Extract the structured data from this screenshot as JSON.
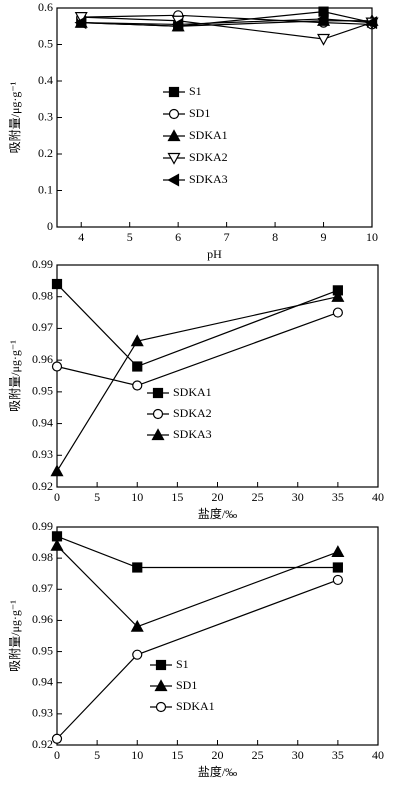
{
  "chart_data": [
    {
      "type": "line",
      "xlabel": "pH",
      "ylabel": "吸附量/μg·g⁻¹",
      "x": [
        4,
        6,
        9,
        10
      ],
      "xlim": [
        3.5,
        10
      ],
      "xticks": [
        4,
        5,
        6,
        7,
        8,
        9,
        10
      ],
      "ylim": [
        0,
        0.6
      ],
      "yticks": [
        0,
        0.1,
        0.2,
        0.3,
        0.4,
        0.5,
        0.6
      ],
      "legend": "center",
      "series": [
        {
          "name": "S1",
          "color": "#000000",
          "marker": "square",
          "values": [
            0.56,
            0.55,
            0.59,
            0.56
          ]
        },
        {
          "name": "SD1",
          "color": "#000000",
          "marker": "circle-open",
          "values": [
            0.575,
            0.58,
            0.56,
            0.555
          ]
        },
        {
          "name": "SDKA1",
          "color": "#000000",
          "marker": "triangle-up",
          "values": [
            0.56,
            0.55,
            0.565,
            0.565
          ]
        },
        {
          "name": "SDKA2",
          "color": "#000000",
          "marker": "triangle-down-open",
          "values": [
            0.575,
            0.565,
            0.515,
            0.56
          ]
        },
        {
          "name": "SDKA3",
          "color": "#000000",
          "marker": "triangle-left",
          "values": [
            0.56,
            0.555,
            0.57,
            0.56
          ]
        }
      ]
    },
    {
      "type": "line",
      "xlabel": "盐度/‰",
      "ylabel": "吸附量/μg·g⁻¹",
      "x": [
        0,
        10,
        35
      ],
      "xlim": [
        0,
        40
      ],
      "xticks": [
        0,
        5,
        10,
        15,
        20,
        25,
        30,
        35,
        40
      ],
      "ylim": [
        0.92,
        0.99
      ],
      "yticks": [
        0.92,
        0.93,
        0.94,
        0.95,
        0.96,
        0.97,
        0.98,
        0.99
      ],
      "legend": "center",
      "series": [
        {
          "name": "SDKA1",
          "color": "#000000",
          "marker": "square",
          "values": [
            0.984,
            0.958,
            0.982
          ]
        },
        {
          "name": "SDKA2",
          "color": "#000000",
          "marker": "circle-open",
          "values": [
            0.958,
            0.952,
            0.975
          ]
        },
        {
          "name": "SDKA3",
          "color": "#000000",
          "marker": "triangle-up",
          "values": [
            0.925,
            0.966,
            0.98
          ]
        }
      ]
    },
    {
      "type": "line",
      "xlabel": "盐度/‰",
      "ylabel": "吸附量/μg·g⁻¹",
      "x": [
        0,
        10,
        35
      ],
      "xlim": [
        0,
        40
      ],
      "xticks": [
        0,
        5,
        10,
        15,
        20,
        25,
        30,
        35,
        40
      ],
      "ylim": [
        0.92,
        0.99
      ],
      "yticks": [
        0.92,
        0.93,
        0.94,
        0.95,
        0.96,
        0.97,
        0.98,
        0.99
      ],
      "legend": "center",
      "series": [
        {
          "name": "S1",
          "color": "#000000",
          "marker": "square",
          "values": [
            0.987,
            0.977,
            0.977
          ]
        },
        {
          "name": "SD1",
          "color": "#000000",
          "marker": "triangle-up",
          "values": [
            0.984,
            0.958,
            0.982
          ]
        },
        {
          "name": "SDKA1",
          "color": "#000000",
          "marker": "circle-open",
          "values": [
            0.922,
            0.949,
            0.973
          ]
        }
      ]
    }
  ]
}
